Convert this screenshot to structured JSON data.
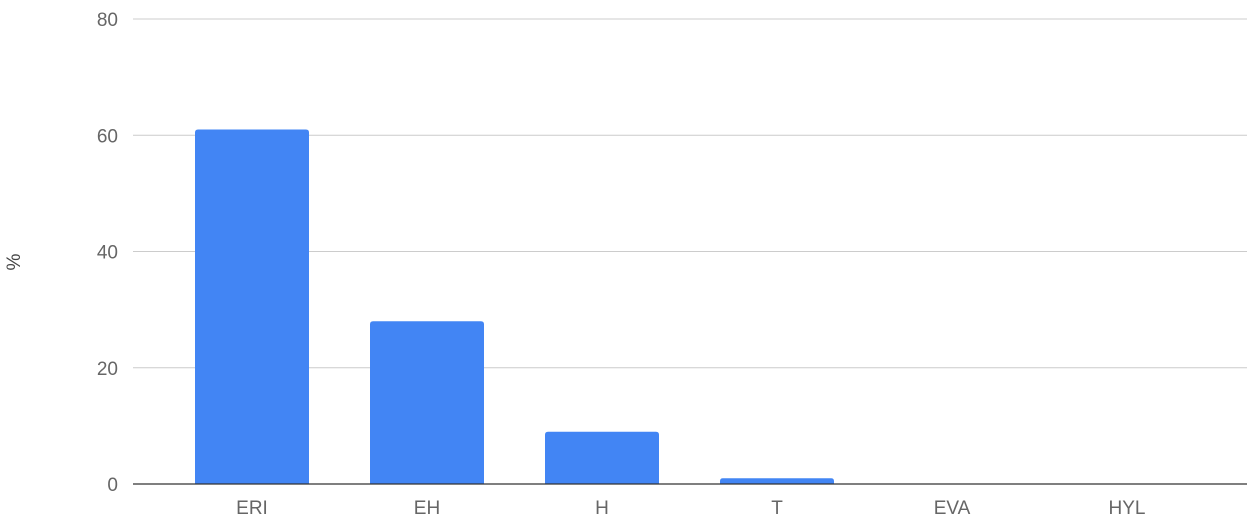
{
  "chart_data": {
    "type": "bar",
    "title": "",
    "xlabel": "",
    "ylabel": "%",
    "categories": [
      "ERI",
      "EH",
      "H",
      "T",
      "EVA",
      "HYL"
    ],
    "values": [
      61,
      28,
      9,
      1,
      0,
      0
    ],
    "ylim": [
      0,
      80
    ],
    "yticks": [
      0,
      20,
      40,
      60,
      80
    ],
    "grid": true,
    "legend": "none",
    "bar_color": "#4285f4",
    "grid_color": "#cccccc",
    "baseline_color": "#333333"
  }
}
